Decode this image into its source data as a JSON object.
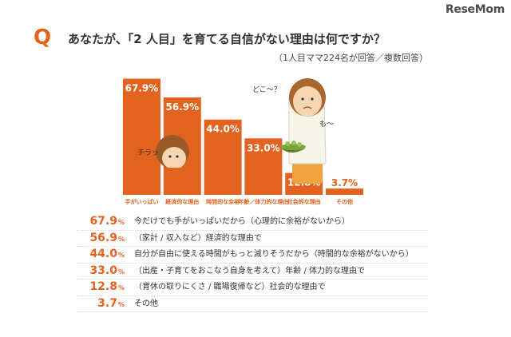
{
  "header": {
    "watermark": "ReseMom",
    "q_mark": "Q",
    "question": "あなたが、「2 人目」を育てる自信がない理由は何ですか？",
    "note": "（1人目ママ224名が回答／複数回答）"
  },
  "illustration": {
    "speech_mom_1": "どこ～？",
    "speech_mom_2": "も～",
    "speech_child": "チラッ"
  },
  "colors": {
    "bar": "#e2631f",
    "accent": "#e2631f"
  },
  "chart_data": {
    "type": "bar",
    "categories": [
      "手がいっぱい",
      "経済的な理由",
      "時間的な余裕",
      "年齢／体力的な理由",
      "社会的な理由",
      "その他"
    ],
    "values": [
      67.9,
      56.9,
      44.0,
      33.0,
      12.8,
      3.7
    ],
    "value_labels": [
      "67.9%",
      "56.9%",
      "44.0%",
      "33.0%",
      "12.8%",
      "3.7%"
    ],
    "unit": "%",
    "ylim": [
      0,
      70
    ],
    "grid": false,
    "legend": false
  },
  "answers": [
    {
      "pct": "67.9",
      "unit": "%",
      "text": "今だけでも手がいっぱいだから（心理的に余裕がないから）"
    },
    {
      "pct": "56.9",
      "unit": "%",
      "text": "（家計 / 収入など）経済的な理由で"
    },
    {
      "pct": "44.0",
      "unit": "%",
      "text": "自分が自由に使える時間がもっと減りそうだから（時間的な余裕がないから）"
    },
    {
      "pct": "33.0",
      "unit": "%",
      "text": "（出産・子育てをおこなう自身を考えて）年齢 / 体力的な理由で"
    },
    {
      "pct": "12.8",
      "unit": "%",
      "text": "（育休の取りにくさ / 職場復帰など）社会的な理由で"
    },
    {
      "pct": "3.7",
      "unit": "%",
      "text": "その他"
    }
  ]
}
